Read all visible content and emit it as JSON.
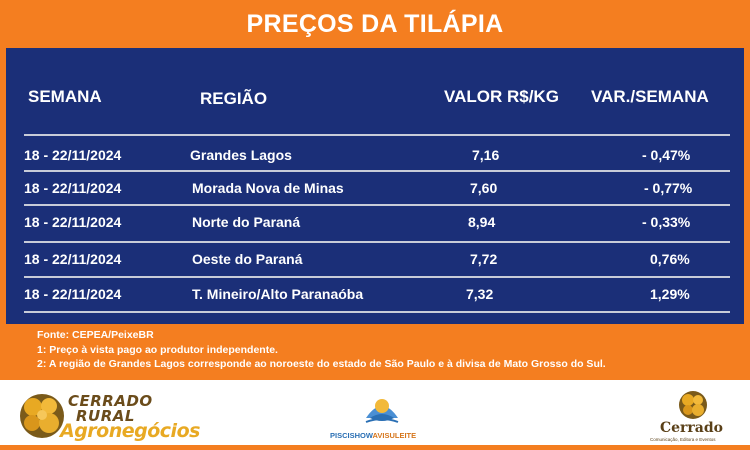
{
  "title": "PREÇOS DA TILÁPIA",
  "headers": {
    "semana": "SEMANA",
    "regiao": "REGIÃO",
    "valor": "VALOR R$/KG",
    "var": "VAR./SEMANA"
  },
  "rows": [
    {
      "semana": "18 - 22/11/2024",
      "regiao": "Grandes Lagos",
      "valor": "7,16",
      "var": "- 0,47%"
    },
    {
      "semana": "18 - 22/11/2024",
      "regiao": "Morada Nova de Minas",
      "valor": "7,60",
      "var": "- 0,77%"
    },
    {
      "semana": "18 - 22/11/2024",
      "regiao": "Norte do Paraná",
      "valor": "8,94",
      "var": "- 0,33%"
    },
    {
      "semana": "18 - 22/11/2024",
      "regiao": "Oeste do Paraná",
      "valor": "7,72",
      "var": "0,76%"
    },
    {
      "semana": "18 - 22/11/2024",
      "regiao": "T. Mineiro/Alto Paranaóba",
      "valor": "7,32",
      "var": "1,29%"
    }
  ],
  "notes": [
    "Fonte: CEPEA/PeixeBR",
    "1: Preço à vista pago ao produtor independente.",
    "2: A região de Grandes Lagos corresponde ao noroeste do estado de São Paulo e à divisa de Mato Grosso do Sul."
  ],
  "logos": {
    "left_line1": "CERRADO",
    "left_line2": "RURAL",
    "left_line3": "Agronegócios",
    "center": "PISCISHOW",
    "center2": "AVISULEITE",
    "right_name": "Cerrado",
    "right_sub": "Comunicação, Editora e Eventos"
  },
  "colors": {
    "orange": "#f47e20",
    "navy": "#1b2f78"
  }
}
